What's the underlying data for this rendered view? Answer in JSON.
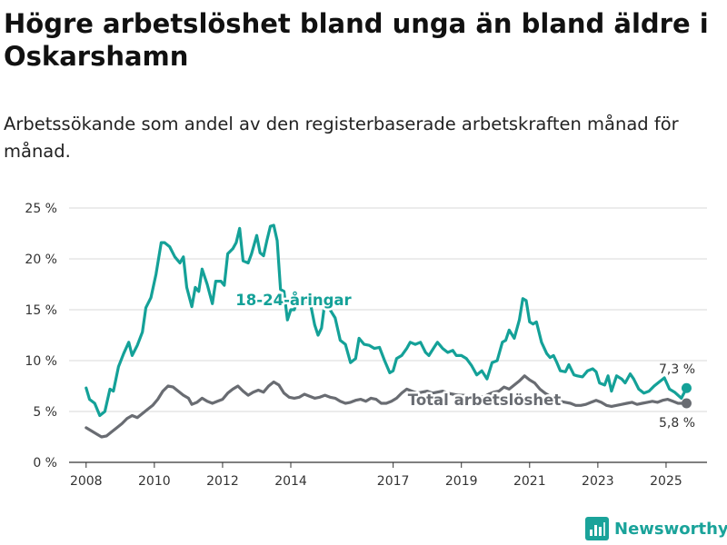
{
  "title": "Högre arbetslöshet bland unga än bland äldre i Oskarshamn",
  "subtitle": "Arbetssökande som andel av den registerbaserade arbetskraften månad för månad.",
  "brand": "Newsworthy",
  "colors": {
    "youth": "#14a198",
    "total": "#696c72",
    "grid": "#d9d9d9",
    "brand": "#1aa39a"
  },
  "chart_data": {
    "type": "line",
    "x_unit": "year",
    "xlim": [
      2007.5,
      2026.2
    ],
    "ylim": [
      0,
      25
    ],
    "grid": true,
    "x_ticks": [
      {
        "value": 2008,
        "label": "2008"
      },
      {
        "value": 2010,
        "label": "2010"
      },
      {
        "value": 2012,
        "label": "2012"
      },
      {
        "value": 2014,
        "label": "2014"
      },
      {
        "value": 2017,
        "label": "2017"
      },
      {
        "value": 2019,
        "label": "2019"
      },
      {
        "value": 2021,
        "label": "2021"
      },
      {
        "value": 2023,
        "label": "2023"
      },
      {
        "value": 2025,
        "label": "2025"
      }
    ],
    "y_ticks": [
      {
        "value": 0,
        "label": "0 %"
      },
      {
        "value": 5,
        "label": "5 %"
      },
      {
        "value": 10,
        "label": "10 %"
      },
      {
        "value": 15,
        "label": "15 %"
      },
      {
        "value": 20,
        "label": "20 %"
      },
      {
        "value": 25,
        "label": "25 %"
      }
    ],
    "series": [
      {
        "name": "18-24-åringar",
        "color": "#14a198",
        "end_label": "7,3 %",
        "points": [
          [
            2008.0,
            7.3
          ],
          [
            2008.1,
            6.2
          ],
          [
            2008.25,
            5.8
          ],
          [
            2008.4,
            4.6
          ],
          [
            2008.55,
            5.0
          ],
          [
            2008.7,
            7.2
          ],
          [
            2008.8,
            7.0
          ],
          [
            2008.95,
            9.4
          ],
          [
            2009.1,
            10.7
          ],
          [
            2009.25,
            11.8
          ],
          [
            2009.35,
            10.5
          ],
          [
            2009.5,
            11.5
          ],
          [
            2009.65,
            12.8
          ],
          [
            2009.75,
            15.2
          ],
          [
            2009.9,
            16.2
          ],
          [
            2010.05,
            18.5
          ],
          [
            2010.2,
            21.6
          ],
          [
            2010.3,
            21.6
          ],
          [
            2010.45,
            21.2
          ],
          [
            2010.6,
            20.2
          ],
          [
            2010.75,
            19.6
          ],
          [
            2010.85,
            20.2
          ],
          [
            2010.95,
            17.2
          ],
          [
            2011.1,
            15.3
          ],
          [
            2011.2,
            17.2
          ],
          [
            2011.3,
            16.8
          ],
          [
            2011.4,
            19.0
          ],
          [
            2011.55,
            17.5
          ],
          [
            2011.7,
            15.6
          ],
          [
            2011.8,
            17.8
          ],
          [
            2011.95,
            17.8
          ],
          [
            2012.05,
            17.4
          ],
          [
            2012.15,
            20.5
          ],
          [
            2012.3,
            21.0
          ],
          [
            2012.4,
            21.6
          ],
          [
            2012.5,
            23.0
          ],
          [
            2012.6,
            19.8
          ],
          [
            2012.75,
            19.6
          ],
          [
            2012.85,
            20.5
          ],
          [
            2013.0,
            22.3
          ],
          [
            2013.1,
            20.6
          ],
          [
            2013.2,
            20.3
          ],
          [
            2013.3,
            21.8
          ],
          [
            2013.4,
            23.2
          ],
          [
            2013.5,
            23.3
          ],
          [
            2013.6,
            21.8
          ],
          [
            2013.7,
            17.0
          ],
          [
            2013.8,
            16.8
          ],
          [
            2013.9,
            14.0
          ],
          [
            2014.0,
            15.0
          ],
          [
            2014.1,
            15.0
          ],
          [
            2014.2,
            16.0
          ],
          [
            2014.3,
            15.5
          ],
          [
            2014.4,
            15.6
          ],
          [
            2014.5,
            16.2
          ],
          [
            2014.6,
            15.2
          ],
          [
            2014.7,
            13.5
          ],
          [
            2014.8,
            12.5
          ],
          [
            2014.9,
            13.2
          ],
          [
            2015.0,
            15.8
          ],
          [
            2015.15,
            15.0
          ],
          [
            2015.3,
            14.2
          ],
          [
            2015.45,
            12.0
          ],
          [
            2015.6,
            11.6
          ],
          [
            2015.75,
            9.8
          ],
          [
            2015.9,
            10.2
          ],
          [
            2016.0,
            12.2
          ],
          [
            2016.15,
            11.6
          ],
          [
            2016.3,
            11.5
          ],
          [
            2016.45,
            11.2
          ],
          [
            2016.6,
            11.3
          ],
          [
            2016.75,
            10.0
          ],
          [
            2016.9,
            8.8
          ],
          [
            2017.0,
            9.0
          ],
          [
            2017.1,
            10.2
          ],
          [
            2017.25,
            10.5
          ],
          [
            2017.4,
            11.2
          ],
          [
            2017.5,
            11.8
          ],
          [
            2017.65,
            11.6
          ],
          [
            2017.8,
            11.8
          ],
          [
            2017.95,
            10.8
          ],
          [
            2018.05,
            10.5
          ],
          [
            2018.2,
            11.3
          ],
          [
            2018.3,
            11.8
          ],
          [
            2018.45,
            11.2
          ],
          [
            2018.6,
            10.8
          ],
          [
            2018.75,
            11.0
          ],
          [
            2018.85,
            10.5
          ],
          [
            2019.0,
            10.5
          ],
          [
            2019.15,
            10.2
          ],
          [
            2019.3,
            9.5
          ],
          [
            2019.45,
            8.6
          ],
          [
            2019.6,
            9.0
          ],
          [
            2019.75,
            8.2
          ],
          [
            2019.9,
            9.8
          ],
          [
            2020.05,
            10.0
          ],
          [
            2020.2,
            11.8
          ],
          [
            2020.3,
            12.0
          ],
          [
            2020.4,
            13.0
          ],
          [
            2020.55,
            12.2
          ],
          [
            2020.7,
            14.0
          ],
          [
            2020.8,
            16.1
          ],
          [
            2020.9,
            15.9
          ],
          [
            2021.0,
            13.8
          ],
          [
            2021.1,
            13.6
          ],
          [
            2021.2,
            13.8
          ],
          [
            2021.35,
            11.8
          ],
          [
            2021.5,
            10.7
          ],
          [
            2021.6,
            10.3
          ],
          [
            2021.7,
            10.5
          ],
          [
            2021.8,
            9.8
          ],
          [
            2021.9,
            9.0
          ],
          [
            2022.05,
            8.9
          ],
          [
            2022.15,
            9.6
          ],
          [
            2022.3,
            8.6
          ],
          [
            2022.4,
            8.5
          ],
          [
            2022.55,
            8.4
          ],
          [
            2022.7,
            9.0
          ],
          [
            2022.85,
            9.2
          ],
          [
            2022.95,
            8.9
          ],
          [
            2023.05,
            7.8
          ],
          [
            2023.2,
            7.6
          ],
          [
            2023.3,
            8.5
          ],
          [
            2023.4,
            7.0
          ],
          [
            2023.55,
            8.5
          ],
          [
            2023.7,
            8.2
          ],
          [
            2023.8,
            7.8
          ],
          [
            2023.95,
            8.7
          ],
          [
            2024.05,
            8.2
          ],
          [
            2024.2,
            7.2
          ],
          [
            2024.35,
            6.8
          ],
          [
            2024.5,
            7.0
          ],
          [
            2024.65,
            7.5
          ],
          [
            2024.8,
            7.9
          ],
          [
            2024.95,
            8.3
          ],
          [
            2025.1,
            7.2
          ],
          [
            2025.25,
            6.9
          ],
          [
            2025.45,
            6.3
          ],
          [
            2025.6,
            7.3
          ]
        ]
      },
      {
        "name": "Total arbetslöshet",
        "color": "#696c72",
        "end_label": "5,8 %",
        "points": [
          [
            2008.0,
            3.4
          ],
          [
            2008.15,
            3.1
          ],
          [
            2008.3,
            2.8
          ],
          [
            2008.45,
            2.5
          ],
          [
            2008.6,
            2.6
          ],
          [
            2008.75,
            3.0
          ],
          [
            2008.9,
            3.4
          ],
          [
            2009.05,
            3.8
          ],
          [
            2009.2,
            4.3
          ],
          [
            2009.35,
            4.6
          ],
          [
            2009.5,
            4.4
          ],
          [
            2009.65,
            4.8
          ],
          [
            2009.8,
            5.2
          ],
          [
            2009.95,
            5.6
          ],
          [
            2010.1,
            6.2
          ],
          [
            2010.25,
            7.0
          ],
          [
            2010.4,
            7.5
          ],
          [
            2010.55,
            7.4
          ],
          [
            2010.7,
            7.0
          ],
          [
            2010.85,
            6.6
          ],
          [
            2011.0,
            6.3
          ],
          [
            2011.1,
            5.7
          ],
          [
            2011.25,
            5.9
          ],
          [
            2011.4,
            6.3
          ],
          [
            2011.55,
            6.0
          ],
          [
            2011.7,
            5.8
          ],
          [
            2011.85,
            6.0
          ],
          [
            2012.0,
            6.2
          ],
          [
            2012.15,
            6.8
          ],
          [
            2012.3,
            7.2
          ],
          [
            2012.45,
            7.5
          ],
          [
            2012.6,
            7.0
          ],
          [
            2012.75,
            6.6
          ],
          [
            2012.9,
            6.9
          ],
          [
            2013.05,
            7.1
          ],
          [
            2013.2,
            6.9
          ],
          [
            2013.35,
            7.5
          ],
          [
            2013.5,
            7.9
          ],
          [
            2013.65,
            7.6
          ],
          [
            2013.8,
            6.8
          ],
          [
            2013.95,
            6.4
          ],
          [
            2014.1,
            6.3
          ],
          [
            2014.25,
            6.4
          ],
          [
            2014.4,
            6.7
          ],
          [
            2014.55,
            6.5
          ],
          [
            2014.7,
            6.3
          ],
          [
            2014.85,
            6.4
          ],
          [
            2015.0,
            6.6
          ],
          [
            2015.15,
            6.4
          ],
          [
            2015.3,
            6.3
          ],
          [
            2015.45,
            6.0
          ],
          [
            2015.6,
            5.8
          ],
          [
            2015.75,
            5.9
          ],
          [
            2015.9,
            6.1
          ],
          [
            2016.05,
            6.2
          ],
          [
            2016.2,
            6.0
          ],
          [
            2016.35,
            6.3
          ],
          [
            2016.5,
            6.2
          ],
          [
            2016.65,
            5.8
          ],
          [
            2016.8,
            5.8
          ],
          [
            2016.95,
            6.0
          ],
          [
            2017.1,
            6.3
          ],
          [
            2017.25,
            6.8
          ],
          [
            2017.4,
            7.2
          ],
          [
            2017.55,
            7.0
          ],
          [
            2017.7,
            6.8
          ],
          [
            2017.85,
            6.9
          ],
          [
            2018.0,
            7.0
          ],
          [
            2018.15,
            6.8
          ],
          [
            2018.3,
            6.9
          ],
          [
            2018.45,
            7.0
          ],
          [
            2018.6,
            6.8
          ],
          [
            2018.75,
            6.7
          ],
          [
            2018.9,
            6.6
          ],
          [
            2019.05,
            6.6
          ],
          [
            2019.2,
            6.5
          ],
          [
            2019.35,
            6.4
          ],
          [
            2019.5,
            6.5
          ],
          [
            2019.65,
            6.4
          ],
          [
            2019.8,
            6.7
          ],
          [
            2019.95,
            6.9
          ],
          [
            2020.1,
            7.0
          ],
          [
            2020.25,
            7.4
          ],
          [
            2020.4,
            7.2
          ],
          [
            2020.55,
            7.6
          ],
          [
            2020.7,
            8.0
          ],
          [
            2020.85,
            8.5
          ],
          [
            2021.0,
            8.1
          ],
          [
            2021.15,
            7.8
          ],
          [
            2021.3,
            7.2
          ],
          [
            2021.45,
            6.8
          ],
          [
            2021.6,
            6.5
          ],
          [
            2021.75,
            6.2
          ],
          [
            2021.9,
            6.0
          ],
          [
            2022.05,
            5.9
          ],
          [
            2022.2,
            5.8
          ],
          [
            2022.35,
            5.6
          ],
          [
            2022.5,
            5.6
          ],
          [
            2022.65,
            5.7
          ],
          [
            2022.8,
            5.9
          ],
          [
            2022.95,
            6.1
          ],
          [
            2023.1,
            5.9
          ],
          [
            2023.25,
            5.6
          ],
          [
            2023.4,
            5.5
          ],
          [
            2023.55,
            5.6
          ],
          [
            2023.7,
            5.7
          ],
          [
            2023.85,
            5.8
          ],
          [
            2024.0,
            5.9
          ],
          [
            2024.15,
            5.7
          ],
          [
            2024.3,
            5.8
          ],
          [
            2024.45,
            5.9
          ],
          [
            2024.6,
            6.0
          ],
          [
            2024.75,
            5.9
          ],
          [
            2024.9,
            6.1
          ],
          [
            2025.05,
            6.2
          ],
          [
            2025.2,
            6.0
          ],
          [
            2025.35,
            5.8
          ],
          [
            2025.6,
            5.8
          ]
        ]
      }
    ]
  }
}
